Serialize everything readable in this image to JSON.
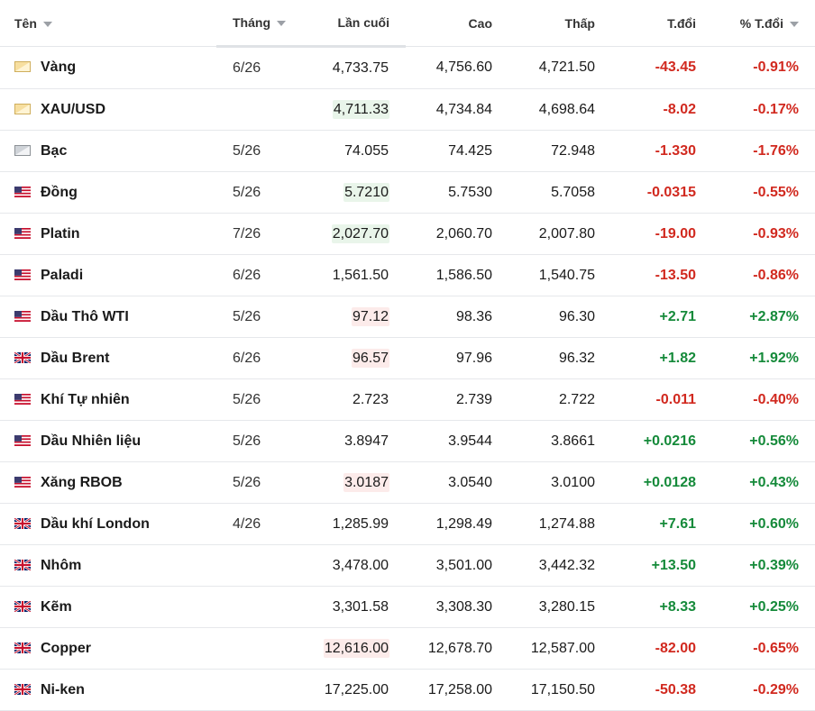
{
  "headers": {
    "name": "Tên",
    "month": "Tháng",
    "last": "Lần cuối",
    "high": "Cao",
    "low": "Thấp",
    "change": "T.đổi",
    "change_pct": "% T.đổi"
  },
  "colors": {
    "positive": "#158a3a",
    "negative": "#d1291f",
    "highlight_green": "#e9f5ea",
    "highlight_red": "#fcebea"
  },
  "rows": [
    {
      "icon": "gold-bar-icon",
      "name": "Vàng",
      "month": "6/26",
      "last": "4,733.75",
      "high": "4,756.60",
      "low": "4,721.50",
      "change": "-43.45",
      "change_pct": "-0.91%",
      "dir": "neg",
      "highlight": ""
    },
    {
      "icon": "gold-bar-icon",
      "name": "XAU/USD",
      "month": "",
      "last": "4,711.33",
      "high": "4,734.84",
      "low": "4,698.64",
      "change": "-8.02",
      "change_pct": "-0.17%",
      "dir": "neg",
      "highlight": "green"
    },
    {
      "icon": "silver-bar-icon",
      "name": "Bạc",
      "month": "5/26",
      "last": "74.055",
      "high": "74.425",
      "low": "72.948",
      "change": "-1.330",
      "change_pct": "-1.76%",
      "dir": "neg",
      "highlight": ""
    },
    {
      "icon": "us-flag-icon",
      "name": "Đồng",
      "month": "5/26",
      "last": "5.7210",
      "high": "5.7530",
      "low": "5.7058",
      "change": "-0.0315",
      "change_pct": "-0.55%",
      "dir": "neg",
      "highlight": "green"
    },
    {
      "icon": "us-flag-icon",
      "name": "Platin",
      "month": "7/26",
      "last": "2,027.70",
      "high": "2,060.70",
      "low": "2,007.80",
      "change": "-19.00",
      "change_pct": "-0.93%",
      "dir": "neg",
      "highlight": "green"
    },
    {
      "icon": "us-flag-icon",
      "name": "Paladi",
      "month": "6/26",
      "last": "1,561.50",
      "high": "1,586.50",
      "low": "1,540.75",
      "change": "-13.50",
      "change_pct": "-0.86%",
      "dir": "neg",
      "highlight": ""
    },
    {
      "icon": "us-flag-icon",
      "name": "Dầu Thô WTI",
      "month": "5/26",
      "last": "97.12",
      "high": "98.36",
      "low": "96.30",
      "change": "+2.71",
      "change_pct": "+2.87%",
      "dir": "pos",
      "highlight": "red"
    },
    {
      "icon": "uk-flag-icon",
      "name": "Dầu Brent",
      "month": "6/26",
      "last": "96.57",
      "high": "97.96",
      "low": "96.32",
      "change": "+1.82",
      "change_pct": "+1.92%",
      "dir": "pos",
      "highlight": "red"
    },
    {
      "icon": "us-flag-icon",
      "name": "Khí Tự nhiên",
      "month": "5/26",
      "last": "2.723",
      "high": "2.739",
      "low": "2.722",
      "change": "-0.011",
      "change_pct": "-0.40%",
      "dir": "neg",
      "highlight": ""
    },
    {
      "icon": "us-flag-icon",
      "name": "Dầu Nhiên liệu",
      "month": "5/26",
      "last": "3.8947",
      "high": "3.9544",
      "low": "3.8661",
      "change": "+0.0216",
      "change_pct": "+0.56%",
      "dir": "pos",
      "highlight": ""
    },
    {
      "icon": "us-flag-icon",
      "name": "Xăng RBOB",
      "month": "5/26",
      "last": "3.0187",
      "high": "3.0540",
      "low": "3.0100",
      "change": "+0.0128",
      "change_pct": "+0.43%",
      "dir": "pos",
      "highlight": "red"
    },
    {
      "icon": "uk-flag-icon",
      "name": "Dầu khí London",
      "month": "4/26",
      "last": "1,285.99",
      "high": "1,298.49",
      "low": "1,274.88",
      "change": "+7.61",
      "change_pct": "+0.60%",
      "dir": "pos",
      "highlight": ""
    },
    {
      "icon": "uk-flag-icon",
      "name": "Nhôm",
      "month": "",
      "last": "3,478.00",
      "high": "3,501.00",
      "low": "3,442.32",
      "change": "+13.50",
      "change_pct": "+0.39%",
      "dir": "pos",
      "highlight": ""
    },
    {
      "icon": "uk-flag-icon",
      "name": "Kẽm",
      "month": "",
      "last": "3,301.58",
      "high": "3,308.30",
      "low": "3,280.15",
      "change": "+8.33",
      "change_pct": "+0.25%",
      "dir": "pos",
      "highlight": ""
    },
    {
      "icon": "uk-flag-icon",
      "name": "Copper",
      "month": "",
      "last": "12,616.00",
      "high": "12,678.70",
      "low": "12,587.00",
      "change": "-82.00",
      "change_pct": "-0.65%",
      "dir": "neg",
      "highlight": "red"
    },
    {
      "icon": "uk-flag-icon",
      "name": "Ni-ken",
      "month": "",
      "last": "17,225.00",
      "high": "17,258.00",
      "low": "17,150.50",
      "change": "-50.38",
      "change_pct": "-0.29%",
      "dir": "neg",
      "highlight": ""
    }
  ]
}
